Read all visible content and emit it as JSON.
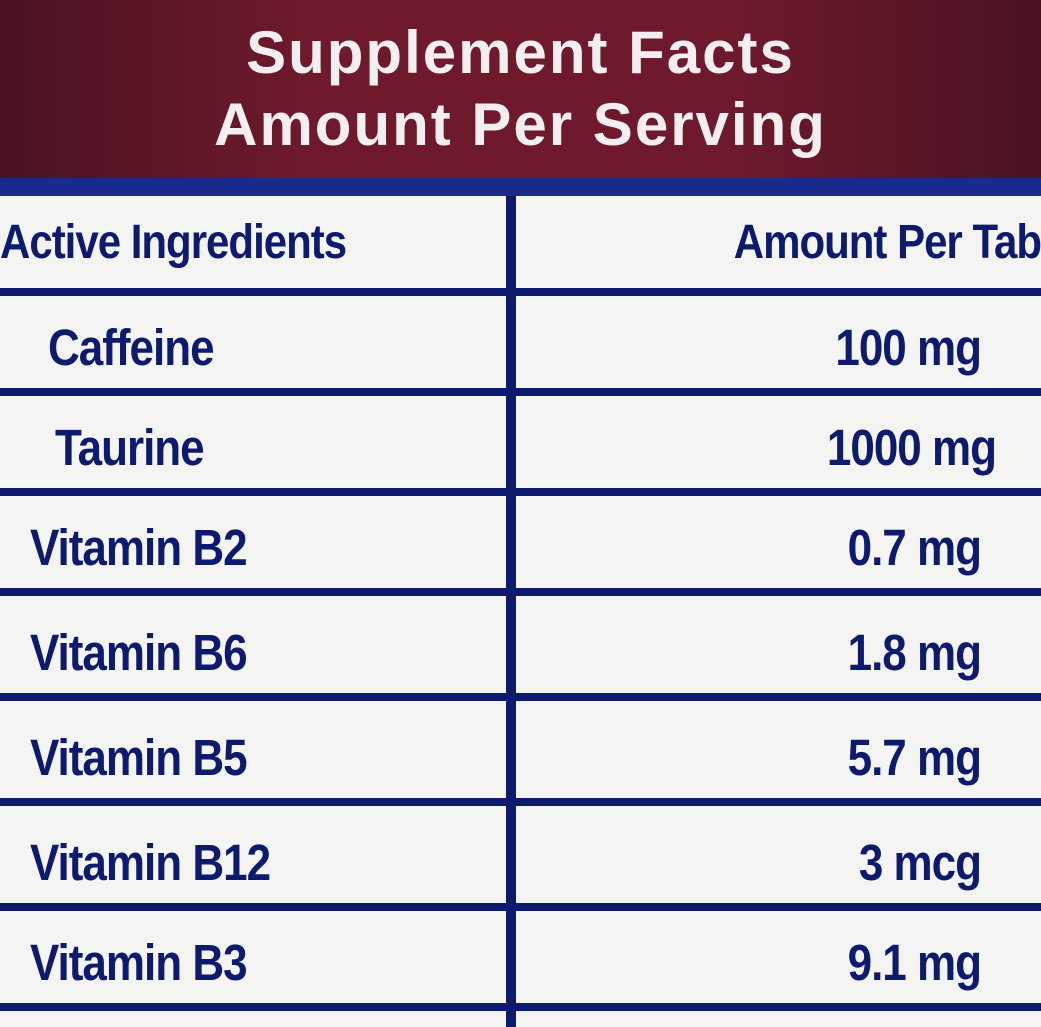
{
  "header": {
    "title": "Supplement Facts",
    "subtitle": "Amount Per Serving"
  },
  "table": {
    "columns": [
      "Active Ingredients",
      "Amount Per Tab"
    ],
    "rows": [
      {
        "name": "Caffeine",
        "amount": "100 mg"
      },
      {
        "name": "Taurine",
        "amount": "1000 mg"
      },
      {
        "name": "Vitamin B2",
        "amount": "0.7 mg"
      },
      {
        "name": "Vitamin B6",
        "amount": "1.8 mg"
      },
      {
        "name": "Vitamin B5",
        "amount": "5.7 mg"
      },
      {
        "name": "Vitamin B12",
        "amount": "3 mcg"
      },
      {
        "name": "Vitamin B3",
        "amount": "9.1 mg"
      }
    ]
  },
  "colors": {
    "header_bg": "#6e1a2c",
    "text": "#0d1a6e",
    "label_bg": "#f4f4f2"
  }
}
